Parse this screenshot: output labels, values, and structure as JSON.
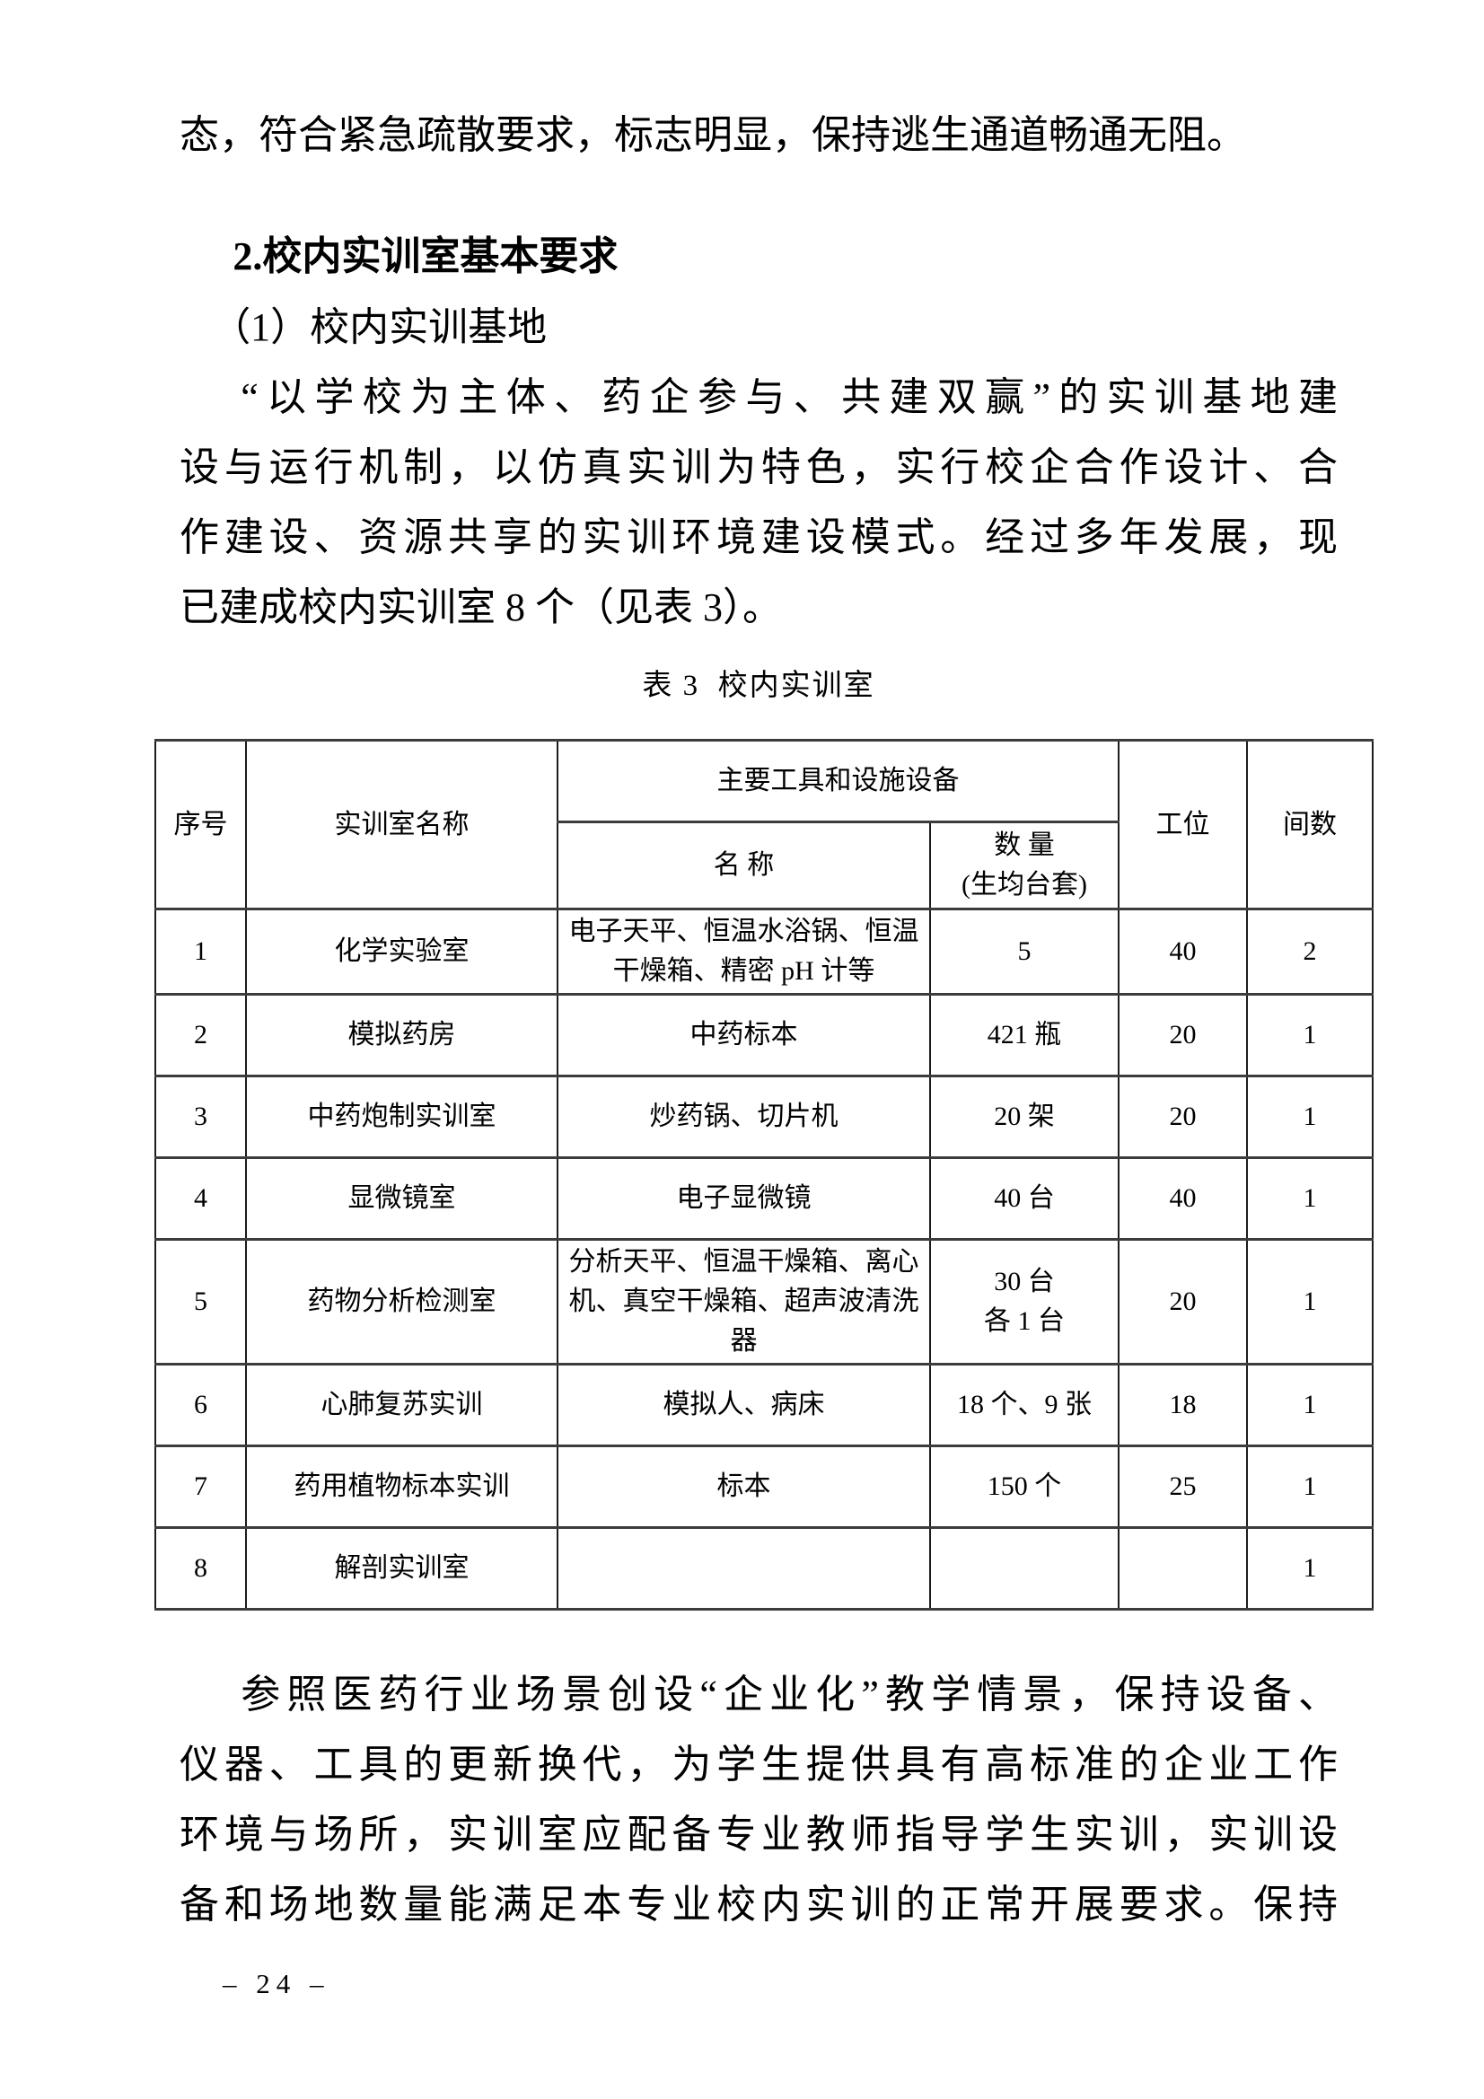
{
  "document": {
    "intro_line": "态，符合紧急疏散要求，标志明显，保持逃生通道畅通无阻。",
    "section_heading": "2.校内实训室基本要求",
    "sub_heading": "（1）校内实训基地",
    "paragraph_training_base_lines": [
      "“以学校为主体、药企参与、共建双赢”的实训基地建",
      "设与运行机制，以仿真实训为特色，实行校企合作设计、合",
      "作建设、资源共享的实训环境建设模式。经过多年发展，现",
      "已建成校内实训室 8 个（见表 3）。"
    ],
    "paragraph_closing_lines": [
      "参照医药行业场景创设“企业化”教学情景，保持设备、",
      "仪器、工具的更新换代，为学生提供具有高标准的企业工作",
      "环境与场所，实训室应配备专业教师指导学生实训，实训设",
      "备和场地数量能满足本专业校内实训的正常开展要求。保持"
    ],
    "page_number": "– 24 –"
  },
  "table": {
    "caption": "表 3  校内实训室",
    "header": {
      "seq": "序号",
      "room": "实训室名称",
      "tools_group": "主要工具和设施设备",
      "tool_name": "名 称",
      "quantity_line1": "数 量",
      "quantity_line2": "(生均台套)",
      "workstations": "工位",
      "rooms": "间数"
    },
    "rows": [
      {
        "seq": "1",
        "room": "化学实验室",
        "tools": "电子天平、恒温水浴锅、恒温干燥箱、精密 pH 计等",
        "quantity": "5",
        "workstations": "40",
        "rooms": "2"
      },
      {
        "seq": "2",
        "room": "模拟药房",
        "tools": "中药标本",
        "quantity": "421 瓶",
        "workstations": "20",
        "rooms": "1"
      },
      {
        "seq": "3",
        "room": "中药炮制实训室",
        "tools": "炒药锅、切片机",
        "quantity": "20 架",
        "workstations": "20",
        "rooms": "1"
      },
      {
        "seq": "4",
        "room": "显微镜室",
        "tools": "电子显微镜",
        "quantity": "40 台",
        "workstations": "40",
        "rooms": "1"
      },
      {
        "seq": "5",
        "room": "药物分析检测室",
        "tools": "分析天平、恒温干燥箱、离心机、真空干燥箱、超声波清洗器",
        "quantity": "30 台\n各 1 台",
        "workstations": "20",
        "rooms": "1"
      },
      {
        "seq": "6",
        "room": "心肺复苏实训",
        "tools": "模拟人、病床",
        "quantity": "18 个、9 张",
        "workstations": "18",
        "rooms": "1"
      },
      {
        "seq": "7",
        "room": "药用植物标本实训",
        "tools": "标本",
        "quantity": "150 个",
        "workstations": "25",
        "rooms": "1"
      },
      {
        "seq": "8",
        "room": "解剖实训室",
        "tools": "",
        "quantity": "",
        "workstations": "",
        "rooms": "1"
      }
    ]
  }
}
